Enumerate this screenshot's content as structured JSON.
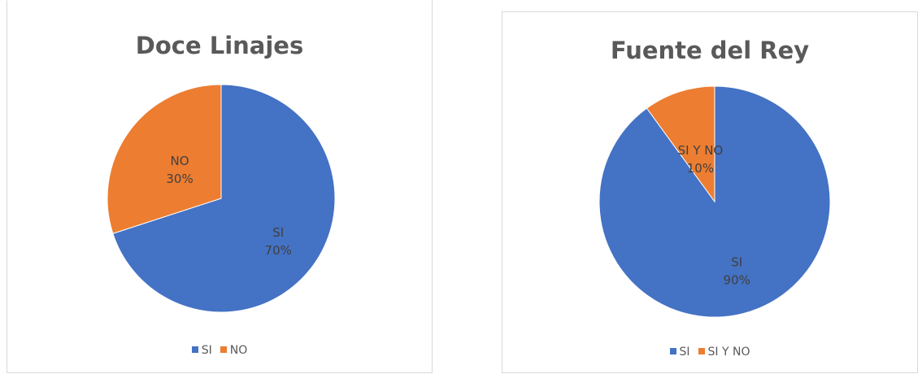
{
  "chart_data": [
    {
      "type": "pie",
      "title": "Doce Linajes",
      "categories": [
        "SI",
        "NO"
      ],
      "values": [
        70,
        30
      ],
      "value_labels": [
        "70%",
        "30%"
      ],
      "colors": [
        "#4472C4",
        "#ED7D31"
      ],
      "legend_position": "bottom"
    },
    {
      "type": "pie",
      "title": "Fuente del Rey",
      "categories": [
        "SI",
        "SI Y NO"
      ],
      "values": [
        90,
        10
      ],
      "value_labels": [
        "90%",
        "10%"
      ],
      "colors": [
        "#4472C4",
        "#ED7D31"
      ],
      "legend_position": "bottom"
    }
  ]
}
